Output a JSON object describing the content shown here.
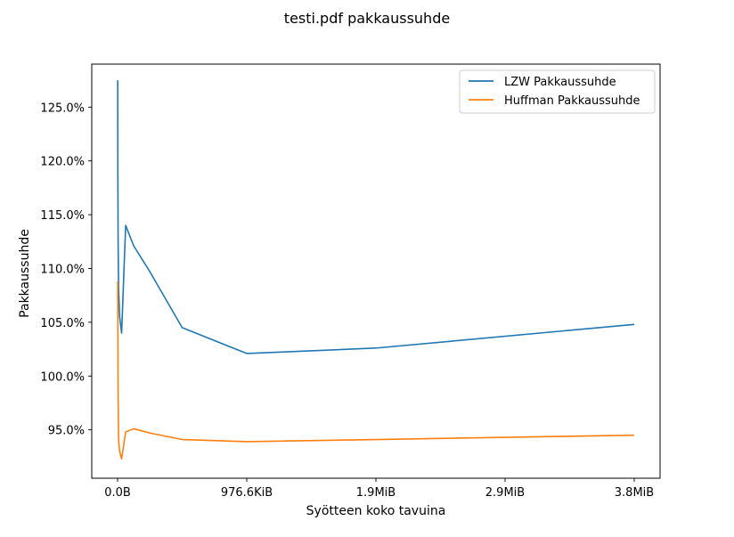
{
  "chart_data": {
    "type": "line",
    "title": "testi.pdf pakkaussuhde",
    "xlabel": "Syötteen koko tavuina",
    "ylabel": "Pakkaussuhde",
    "xlim": [
      -200000,
      4200000
    ],
    "ylim": [
      0.905,
      1.29
    ],
    "x_ticks": [
      {
        "value": 0,
        "label": "0.0B"
      },
      {
        "value": 1000000,
        "label": "976.6KiB"
      },
      {
        "value": 2000000,
        "label": "1.9MiB"
      },
      {
        "value": 3000000,
        "label": "2.9MiB"
      },
      {
        "value": 4000000,
        "label": "3.8MiB"
      }
    ],
    "y_ticks": [
      {
        "value": 0.95,
        "label": "95.0%"
      },
      {
        "value": 1.0,
        "label": "100.0%"
      },
      {
        "value": 1.05,
        "label": "105.0%"
      },
      {
        "value": 1.1,
        "label": "110.0%"
      },
      {
        "value": 1.15,
        "label": "115.0%"
      },
      {
        "value": 1.2,
        "label": "120.0%"
      },
      {
        "value": 1.25,
        "label": "125.0%"
      }
    ],
    "grid": false,
    "legend_position": "top-right",
    "series": [
      {
        "name": "LZW Pakkaussuhde",
        "color": "#1f77b4",
        "x": [
          1000,
          2000,
          4000,
          8000,
          16000,
          31250,
          62500,
          125000,
          250000,
          500000,
          1000000,
          2000000,
          4000000
        ],
        "y": [
          1.275,
          1.19,
          1.125,
          1.08,
          1.055,
          1.04,
          1.14,
          1.121,
          1.097,
          1.045,
          1.021,
          1.026,
          1.048
        ]
      },
      {
        "name": "Huffman Pakkaussuhde",
        "color": "#ff7f0e",
        "x": [
          1000,
          2000,
          4000,
          8000,
          16000,
          31250,
          62500,
          125000,
          250000,
          500000,
          1000000,
          2000000,
          4000000
        ],
        "y": [
          1.088,
          1.05,
          0.98,
          0.94,
          0.93,
          0.923,
          0.948,
          0.951,
          0.947,
          0.941,
          0.939,
          0.941,
          0.945
        ]
      }
    ]
  }
}
